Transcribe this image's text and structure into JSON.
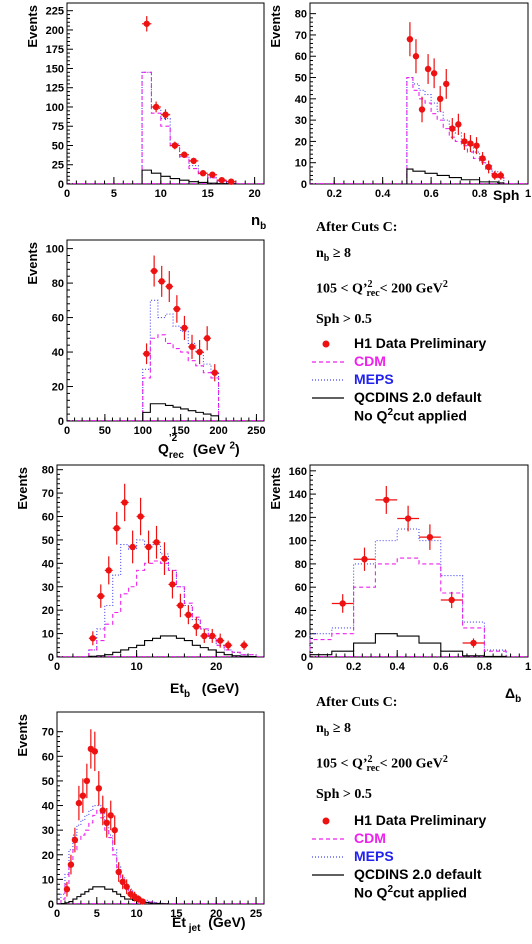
{
  "colors": {
    "data": "#ee1111",
    "cdm": "#ee22ee",
    "meps": "#4444ee",
    "qcdins": "#000000"
  },
  "cuts_header": "After Cuts C:",
  "cuts": {
    "nb": "n",
    "nb_sub": "b",
    "nb_rest": " ≥ 8",
    "q_pre": "105  <  Q’",
    "q_sup": "2",
    "q_sub": "rec",
    "q_post": "< 200 GeV",
    "q_post_sup": "2",
    "sph": "Sph  > 0.5"
  },
  "legend": {
    "data": "H1 Data Preliminary",
    "cdm": "CDM",
    "meps": "MEPS",
    "qcdins": "QCDINS 2.0 default",
    "noq_pre": "No Q",
    "noq_sup": "2",
    "noq_post": "cut applied"
  },
  "chart_data": [
    {
      "id": "nb",
      "type": "histogram",
      "ylabel": "Events",
      "xlabel": "n_b",
      "xlim": [
        0,
        21
      ],
      "ylim": [
        0,
        235
      ],
      "xticks": [
        0,
        5,
        10,
        15,
        20
      ],
      "yticks": [
        0,
        25,
        50,
        75,
        100,
        125,
        150,
        175,
        200,
        225
      ],
      "edges": [
        8,
        9,
        10,
        11,
        12,
        13,
        14,
        15,
        16,
        17,
        18
      ],
      "cdm": [
        145,
        92,
        75,
        48,
        35,
        20,
        12,
        8,
        4,
        2
      ],
      "meps": [
        145,
        98,
        85,
        52,
        36,
        24,
        14,
        8,
        4,
        2
      ],
      "qcdins": [
        18,
        14,
        10,
        7,
        5,
        3,
        2,
        1,
        0.5,
        0.3
      ],
      "points": [
        [
          8.5,
          208,
          10
        ],
        [
          9.5,
          100,
          7
        ],
        [
          10.5,
          90,
          7
        ],
        [
          11.5,
          50,
          5
        ],
        [
          12.5,
          38,
          4
        ],
        [
          13.5,
          30,
          4
        ],
        [
          14.5,
          14,
          3
        ],
        [
          15.5,
          12,
          3
        ],
        [
          16.5,
          5,
          2
        ],
        [
          17.5,
          3,
          1.5
        ]
      ]
    },
    {
      "id": "sph",
      "type": "histogram",
      "ylabel": "Events",
      "xlabel": "Sph",
      "xlim": [
        0.1,
        1.0
      ],
      "ylim": [
        0,
        85
      ],
      "xticks": [
        0.2,
        0.4,
        0.6,
        0.8,
        1
      ],
      "yticks": [
        0,
        10,
        20,
        30,
        40,
        50,
        60,
        70,
        80
      ],
      "edges": [
        0.5,
        0.525,
        0.55,
        0.575,
        0.6,
        0.625,
        0.65,
        0.675,
        0.7,
        0.725,
        0.75,
        0.775,
        0.8,
        0.825,
        0.85,
        0.875,
        0.9
      ],
      "cdm": [
        50,
        44,
        40,
        38,
        33,
        30,
        26,
        22,
        20,
        18,
        15,
        12,
        10,
        7,
        5,
        3
      ],
      "meps": [
        50,
        47,
        44,
        42,
        38,
        34,
        30,
        27,
        24,
        20,
        18,
        15,
        12,
        9,
        6,
        3
      ],
      "qcdins": [
        7,
        6,
        6,
        5,
        5,
        4,
        4,
        3,
        3,
        2,
        2,
        2,
        1,
        1,
        1,
        0.5
      ],
      "points": [
        [
          0.5125,
          68,
          8
        ],
        [
          0.5375,
          60,
          8
        ],
        [
          0.5625,
          35,
          6
        ],
        [
          0.5875,
          54,
          7
        ],
        [
          0.6125,
          52,
          7
        ],
        [
          0.6375,
          40,
          6
        ],
        [
          0.6625,
          47,
          7
        ],
        [
          0.6875,
          26,
          5
        ],
        [
          0.7125,
          28,
          5
        ],
        [
          0.7375,
          20,
          4
        ],
        [
          0.7625,
          19,
          4
        ],
        [
          0.7875,
          18,
          4
        ],
        [
          0.8125,
          12,
          3
        ],
        [
          0.8375,
          8,
          3
        ],
        [
          0.8625,
          4,
          2
        ],
        [
          0.8875,
          4,
          2
        ]
      ]
    },
    {
      "id": "q2",
      "type": "histogram",
      "ylabel": "Events",
      "xlabel": "Q’²_rec (GeV²)",
      "xlim": [
        0,
        260
      ],
      "ylim": [
        0,
        105
      ],
      "xticks": [
        0,
        50,
        100,
        150,
        200,
        250
      ],
      "yticks": [
        0,
        20,
        40,
        60,
        80,
        100
      ],
      "edges": [
        100,
        110,
        120,
        130,
        140,
        150,
        160,
        170,
        180,
        190,
        200
      ],
      "cdm": [
        25,
        48,
        50,
        45,
        42,
        40,
        35,
        32,
        28,
        25
      ],
      "meps": [
        30,
        70,
        60,
        62,
        55,
        52,
        45,
        40,
        33,
        28
      ],
      "qcdins": [
        5,
        10,
        10,
        9,
        8,
        7,
        6,
        5,
        4,
        3
      ],
      "points": [
        [
          105,
          39,
          6
        ],
        [
          115,
          87,
          9
        ],
        [
          125,
          81,
          9
        ],
        [
          135,
          78,
          9
        ],
        [
          145,
          65,
          8
        ],
        [
          155,
          54,
          7
        ],
        [
          165,
          43,
          7
        ],
        [
          175,
          40,
          7
        ],
        [
          185,
          48,
          7
        ],
        [
          195,
          28,
          5
        ]
      ]
    },
    {
      "id": "etb",
      "type": "histogram",
      "ylabel": "Events",
      "xlabel": "Et_b (GeV)",
      "xlim": [
        0,
        26
      ],
      "ylim": [
        0,
        82
      ],
      "xticks": [
        0,
        10,
        20
      ],
      "yticks": [
        0,
        10,
        20,
        30,
        40,
        50,
        60,
        70,
        80
      ],
      "edges": [
        4,
        5,
        6,
        7,
        8,
        9,
        10,
        11,
        12,
        13,
        14,
        15,
        16,
        17,
        18,
        19,
        20,
        21,
        22,
        23,
        24,
        25
      ],
      "cdm": [
        3,
        7,
        14,
        19,
        27,
        30,
        37,
        40,
        41,
        40,
        37,
        30,
        23,
        17,
        12,
        8,
        5,
        3,
        2,
        1,
        1
      ],
      "meps": [
        3,
        12,
        22,
        35,
        48,
        46,
        50,
        48,
        48,
        44,
        37,
        30,
        22,
        16,
        12,
        8,
        5,
        3,
        2,
        1,
        1
      ],
      "qcdins": [
        0.3,
        0.5,
        1,
        2,
        3,
        4,
        5,
        7,
        8,
        9,
        9,
        8,
        7,
        5,
        4,
        3,
        2,
        1,
        0.5,
        0.3,
        0.2
      ],
      "points": [
        [
          4.5,
          8,
          3
        ],
        [
          5.5,
          26,
          5
        ],
        [
          6.5,
          37,
          6
        ],
        [
          7.5,
          55,
          7
        ],
        [
          8.5,
          66,
          8
        ],
        [
          9.5,
          47,
          7
        ],
        [
          10.5,
          60,
          8
        ],
        [
          11.5,
          47,
          7
        ],
        [
          12.5,
          49,
          7
        ],
        [
          13.5,
          42,
          7
        ],
        [
          14.5,
          31,
          6
        ],
        [
          15.5,
          22,
          5
        ],
        [
          16.5,
          18,
          4
        ],
        [
          17.5,
          13,
          4
        ],
        [
          18.5,
          9,
          3
        ],
        [
          19.5,
          9,
          3
        ],
        [
          20.5,
          7,
          3
        ],
        [
          21.5,
          5,
          2
        ],
        [
          23.5,
          5,
          2
        ]
      ]
    },
    {
      "id": "delta",
      "type": "histogram",
      "ylabel": "Events",
      "xlabel": "Δ_b",
      "xlim": [
        0,
        1.0
      ],
      "ylim": [
        0,
        165
      ],
      "xticks": [
        0,
        0.2,
        0.4,
        0.6,
        0.8,
        1
      ],
      "yticks": [
        0,
        20,
        40,
        60,
        80,
        100,
        120,
        140,
        160
      ],
      "edges": [
        0,
        0.1,
        0.2,
        0.3,
        0.4,
        0.5,
        0.6,
        0.7,
        0.8,
        0.9
      ],
      "cdm": [
        15,
        20,
        60,
        80,
        85,
        80,
        55,
        25,
        5
      ],
      "meps": [
        20,
        25,
        80,
        100,
        110,
        100,
        70,
        30,
        6
      ],
      "qcdins": [
        2,
        5,
        12,
        20,
        18,
        12,
        5,
        1,
        0.5
      ],
      "points": [
        [
          0.15,
          46,
          8
        ],
        [
          0.25,
          84,
          10
        ],
        [
          0.35,
          135,
          12
        ],
        [
          0.45,
          119,
          11
        ],
        [
          0.55,
          103,
          11
        ],
        [
          0.65,
          49,
          7
        ],
        [
          0.75,
          12,
          4
        ]
      ]
    },
    {
      "id": "etjet",
      "type": "histogram",
      "ylabel": "Events",
      "xlabel": "Et_jet (GeV)",
      "xlim": [
        0,
        26
      ],
      "ylim": [
        0,
        78
      ],
      "xticks": [
        0,
        5,
        10,
        15,
        20,
        25
      ],
      "yticks": [
        0,
        10,
        20,
        30,
        40,
        50,
        60,
        70
      ],
      "edges": [
        0.5,
        1,
        1.5,
        2,
        2.5,
        3,
        3.5,
        4,
        4.5,
        5,
        5.5,
        6,
        6.5,
        7,
        7.5,
        8,
        8.5,
        9,
        9.5,
        10,
        10.5,
        11,
        11.5,
        12,
        12.5,
        13,
        13.5,
        14
      ],
      "cdm": [
        2,
        8,
        16,
        22,
        26,
        28,
        30,
        33,
        36,
        38,
        35,
        30,
        27,
        20,
        14,
        10,
        7,
        5,
        3,
        2,
        1.5,
        1,
        0.8,
        0.5,
        0.3,
        0.2,
        0.1
      ],
      "meps": [
        4,
        12,
        22,
        28,
        32,
        34,
        36,
        38,
        40,
        40,
        38,
        32,
        28,
        22,
        15,
        11,
        8,
        6,
        4,
        3,
        2,
        1.5,
        1,
        0.7,
        0.5,
        0.3,
        0.2
      ],
      "qcdins": [
        0.2,
        0.5,
        1,
        2,
        3,
        4,
        5,
        6,
        7,
        7,
        7,
        6,
        6,
        5,
        4,
        3,
        2,
        2,
        1.5,
        1,
        0.8,
        0.6,
        0.4,
        0.3,
        0.2,
        0.1,
        0.1
      ],
      "points": [
        [
          1.25,
          6,
          3
        ],
        [
          1.75,
          16,
          4
        ],
        [
          2.25,
          26,
          5
        ],
        [
          2.75,
          41,
          7
        ],
        [
          3.25,
          44,
          7
        ],
        [
          3.75,
          50,
          7
        ],
        [
          4.25,
          63,
          8
        ],
        [
          4.75,
          62,
          8
        ],
        [
          5.25,
          47,
          7
        ],
        [
          5.75,
          38,
          6
        ],
        [
          6.25,
          33,
          6
        ],
        [
          6.75,
          36,
          6
        ],
        [
          7.25,
          30,
          6
        ],
        [
          7.75,
          13,
          4
        ],
        [
          8.25,
          9,
          3
        ],
        [
          8.75,
          7,
          3
        ],
        [
          9.25,
          4,
          2
        ],
        [
          9.75,
          3,
          2
        ],
        [
          10.25,
          2,
          1.5
        ],
        [
          10.75,
          1,
          1
        ]
      ]
    }
  ]
}
